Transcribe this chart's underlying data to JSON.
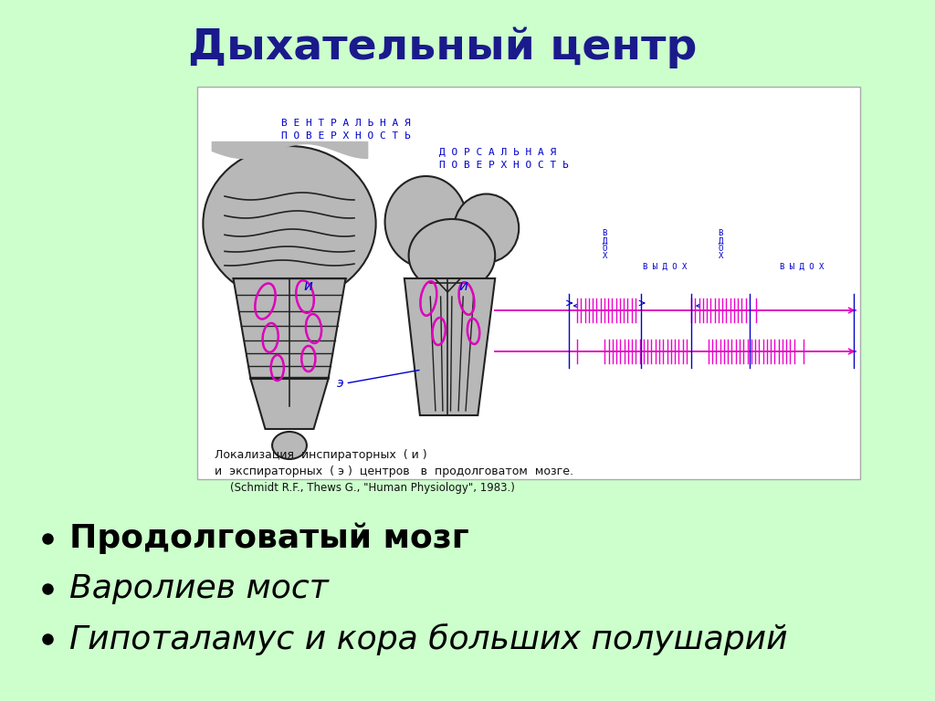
{
  "background_color": "#ccffcc",
  "title": "Дыхательный центр",
  "title_color": "#1a1a8c",
  "title_fontsize": 34,
  "image_bg": "#ffffff",
  "label_ventral": "В Е Н Т Р А Л Ь Н А Я\nП О В Е Р Х Н О С Т Ь",
  "label_dorsal": "Д О Р С А Л Ь Н А Я\nП О В Е Р Х Н О С Т Ь",
  "caption_line1": "Локализация  инспираторных  ( и )",
  "caption_line2": "и  экспираторных  ( э )  центров   в  продолговатом  мозге.",
  "caption_line3": "(Schmidt R.F., Thews G., \"Human Physiology\", 1983.)",
  "bullet_items": [
    "Продолговатый мозг",
    "Варолиев мост",
    "Гипоталамус и кора больших полушарий"
  ],
  "bullet_bold": [
    true,
    false,
    false
  ],
  "bullet_fontsize": 26,
  "brain_color": "#b8b8b8",
  "outline_color": "#222222",
  "pink_color": "#dd00bb",
  "blue_color": "#0000cc",
  "signal_color": "#ee00cc"
}
